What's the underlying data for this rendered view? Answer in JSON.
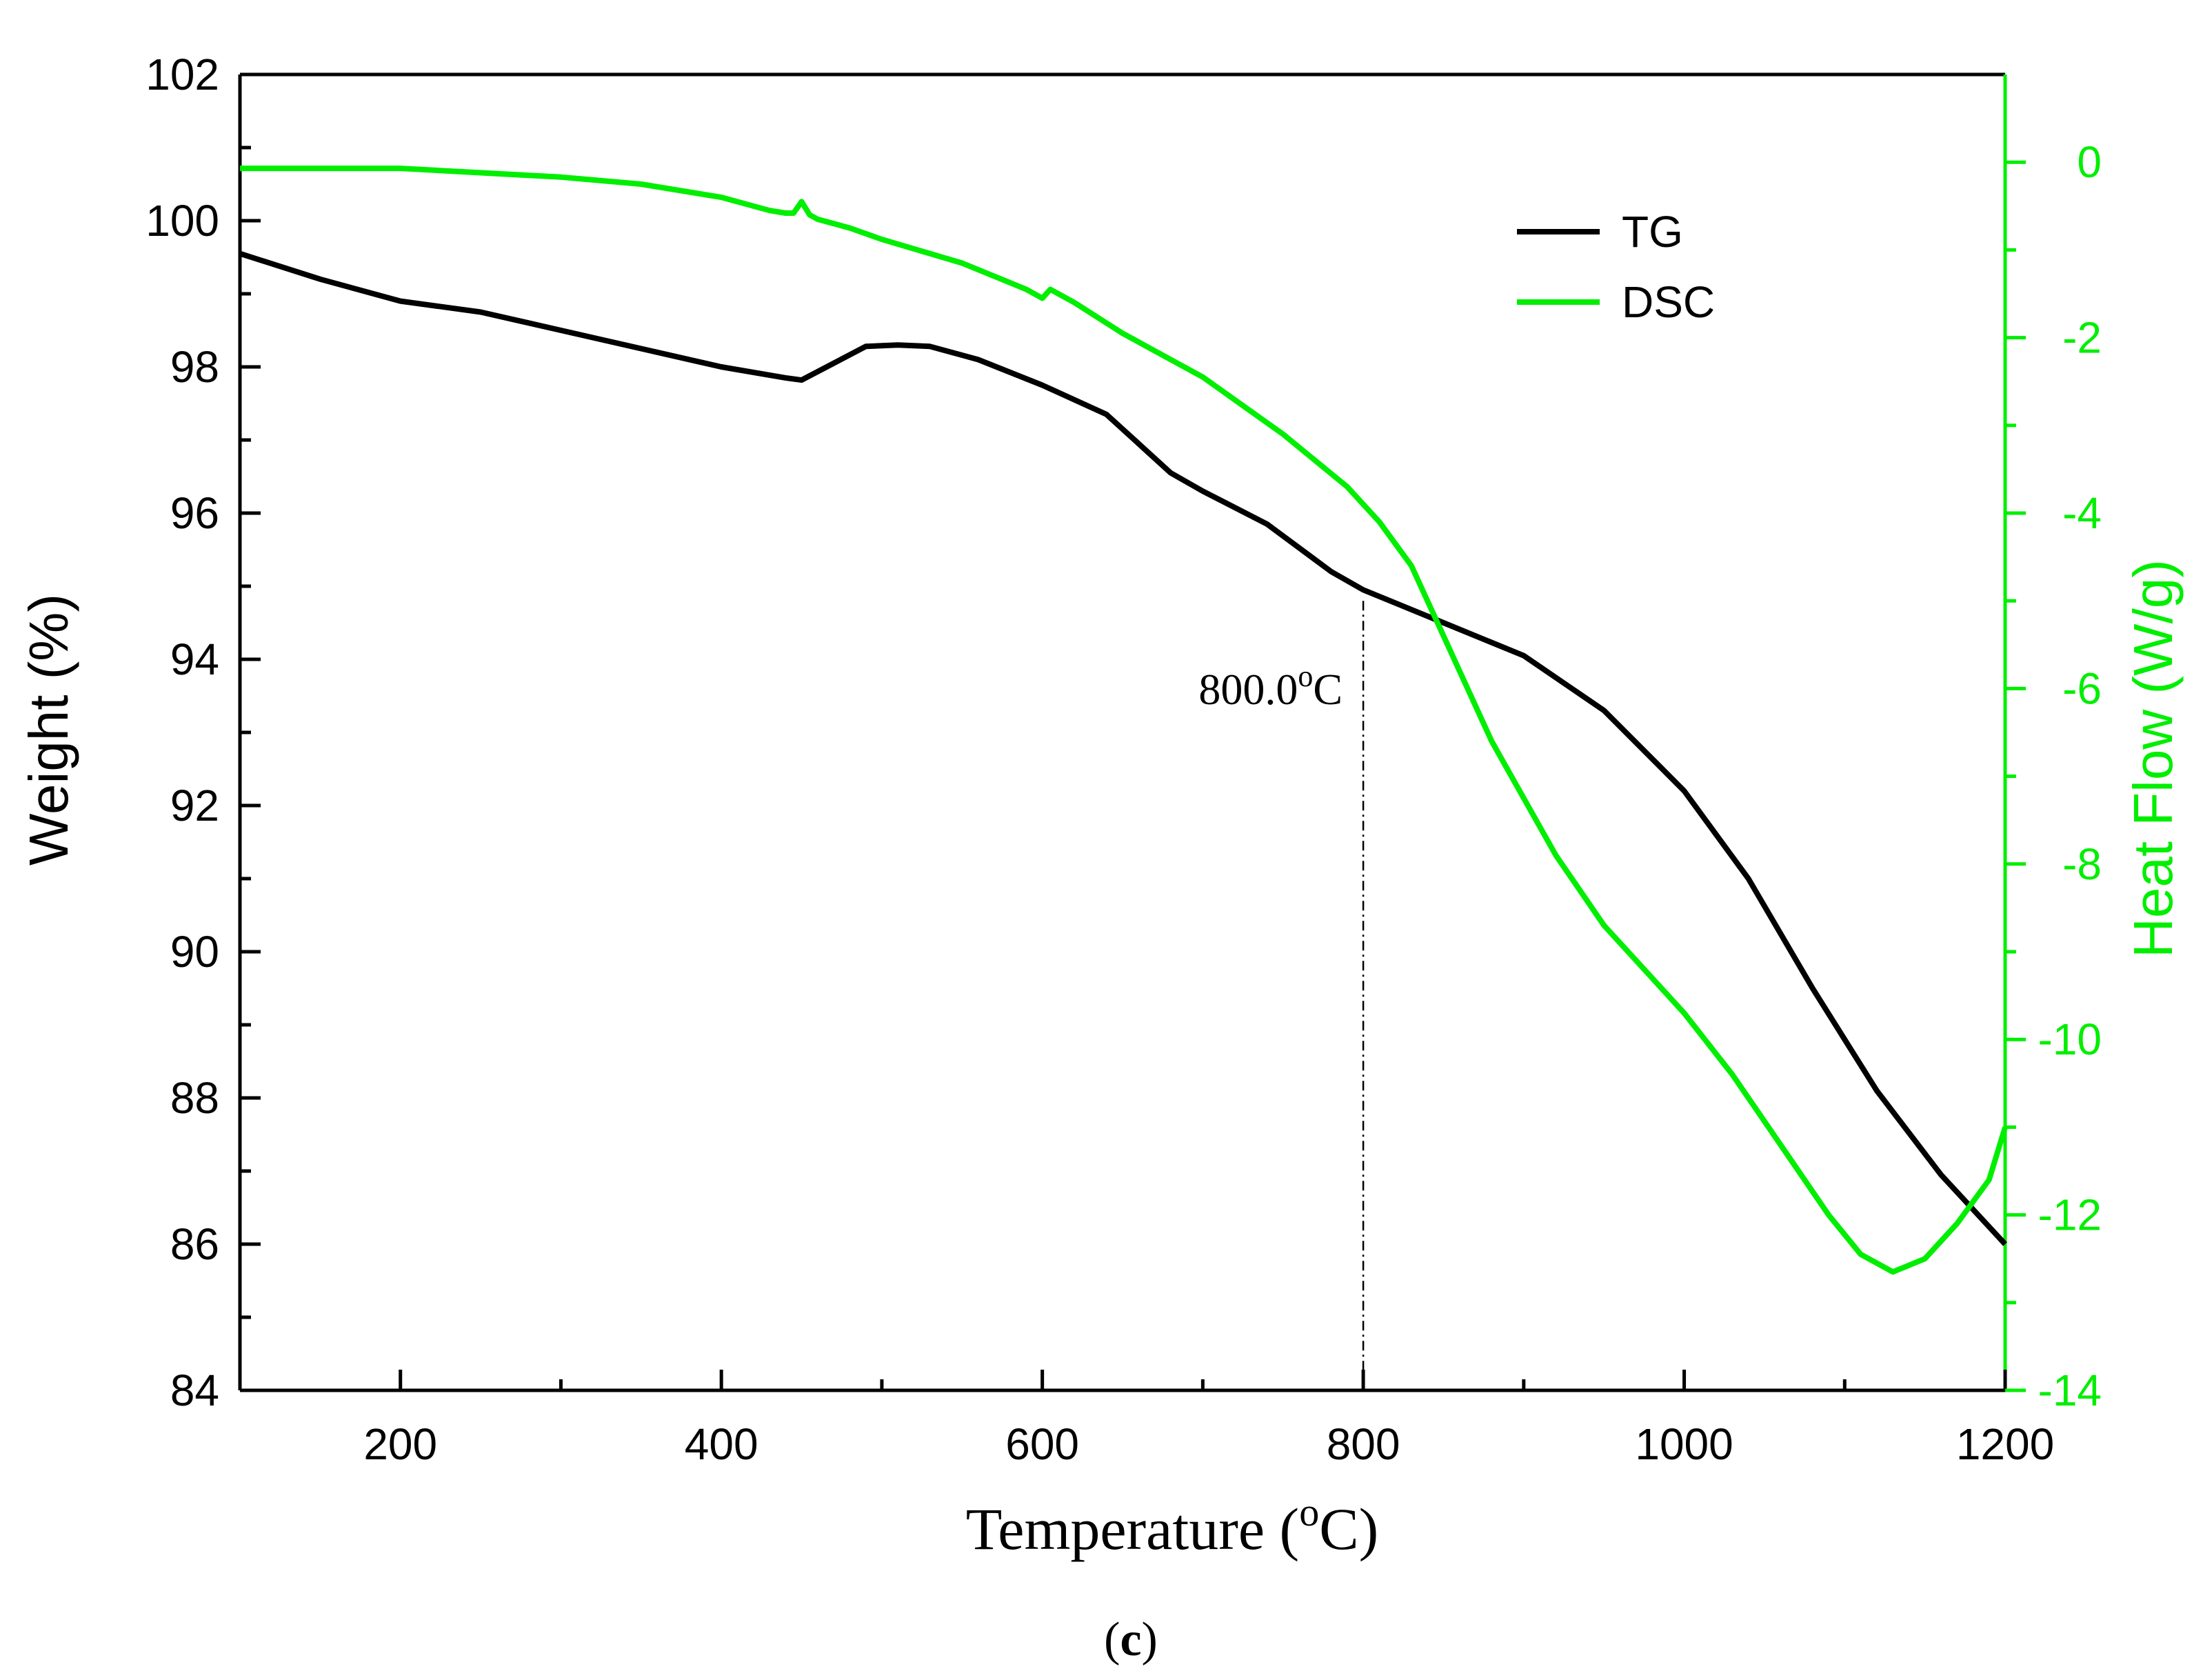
{
  "chart_data": {
    "type": "line",
    "panel_label": "c",
    "xlabel_text": "Temperature (",
    "xlabel_sup": "o",
    "xlabel_unit": "C)",
    "ylabel_left": "Weight (%)",
    "ylabel_right": "Heat Flow (W/g)",
    "xlim": [
      100,
      1200
    ],
    "ylim_left": [
      84,
      102
    ],
    "ylim_right": [
      -14,
      1
    ],
    "x_ticks": [
      200,
      400,
      600,
      800,
      1000,
      1200
    ],
    "x_tick_labels": [
      "200",
      "400",
      "600",
      "800",
      "1000",
      "1200"
    ],
    "y_left_ticks": [
      84,
      86,
      88,
      90,
      92,
      94,
      96,
      98,
      100,
      102
    ],
    "y_left_tick_labels": [
      "84",
      "86",
      "88",
      "90",
      "92",
      "94",
      "96",
      "98",
      "100",
      "102"
    ],
    "y_right_ticks": [
      -14,
      -12,
      -10,
      -8,
      -6,
      -4,
      -2,
      0
    ],
    "y_right_tick_labels": [
      "-14",
      "-12",
      "-10",
      "-8",
      "-6",
      "-4",
      "-2",
      "0"
    ],
    "annotation": {
      "x": 800,
      "y_top": 94.8,
      "text": "800.0",
      "sup": "o",
      "unit": "C"
    },
    "legend_position": "top-right",
    "series": [
      {
        "name": "TG",
        "axis": "left",
        "color": "#000000",
        "x": [
          100,
          150,
          200,
          250,
          300,
          350,
          400,
          440,
          450,
          470,
          490,
          510,
          530,
          560,
          600,
          640,
          660,
          680,
          700,
          740,
          780,
          800,
          850,
          900,
          950,
          1000,
          1040,
          1080,
          1120,
          1160,
          1200
        ],
        "y": [
          99.55,
          99.2,
          98.9,
          98.75,
          98.5,
          98.25,
          98.0,
          97.85,
          97.82,
          98.05,
          98.28,
          98.3,
          98.28,
          98.1,
          97.75,
          97.35,
          96.95,
          96.55,
          96.3,
          95.85,
          95.2,
          94.95,
          94.5,
          94.05,
          93.3,
          92.2,
          91.0,
          89.5,
          88.1,
          86.95,
          86.0
        ]
      },
      {
        "name": "DSC",
        "axis": "right",
        "color": "#00ee00",
        "x": [
          100,
          150,
          200,
          250,
          300,
          350,
          400,
          420,
          430,
          440,
          445,
          450,
          455,
          460,
          480,
          500,
          550,
          590,
          600,
          605,
          620,
          650,
          680,
          700,
          750,
          790,
          810,
          830,
          850,
          880,
          920,
          950,
          1000,
          1030,
          1060,
          1090,
          1110,
          1130,
          1150,
          1170,
          1190,
          1200
        ],
        "y": [
          -0.07,
          -0.07,
          -0.07,
          -0.12,
          -0.17,
          -0.25,
          -0.4,
          -0.5,
          -0.55,
          -0.58,
          -0.58,
          -0.45,
          -0.6,
          -0.65,
          -0.75,
          -0.88,
          -1.15,
          -1.45,
          -1.55,
          -1.45,
          -1.6,
          -1.95,
          -2.25,
          -2.45,
          -3.1,
          -3.7,
          -4.1,
          -4.6,
          -5.4,
          -6.6,
          -7.9,
          -8.7,
          -9.7,
          -10.4,
          -11.2,
          -12.0,
          -12.45,
          -12.65,
          -12.5,
          -12.1,
          -11.6,
          -11.0
        ]
      }
    ]
  },
  "colors": {
    "axis": "#000000",
    "right_axis": "#00ee00",
    "tg": "#000000",
    "dsc": "#00ee00"
  }
}
